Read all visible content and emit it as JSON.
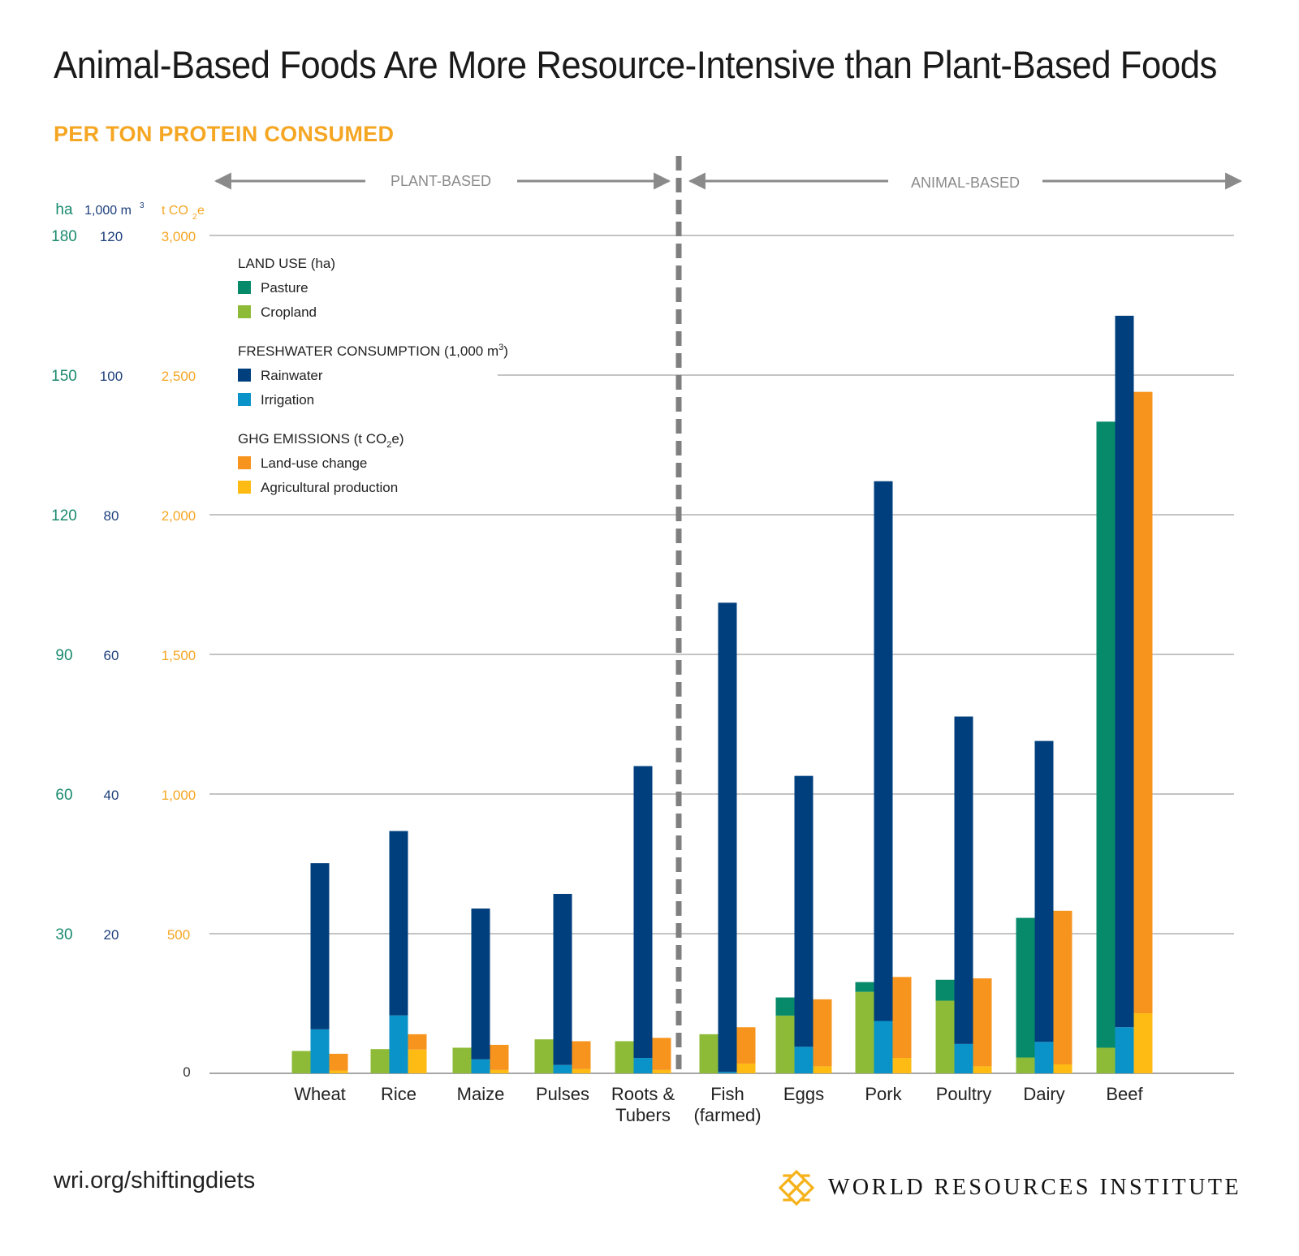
{
  "title": "Animal-Based Foods Are More Resource-Intensive than Plant-Based Foods",
  "subtitle": "PER TON PROTEIN CONSUMED",
  "footer": {
    "url": "wri.org/shiftingdiets",
    "logo_text": "WORLD RESOURCES INSTITUTE"
  },
  "colors": {
    "pasture": "#078a6a",
    "cropland": "#8dbb38",
    "rainwater": "#003f7d",
    "irrigation": "#0a93c9",
    "land_use_change": "#f7941d",
    "agricultural_production": "#fdbb14",
    "axis_ha": "#1a8a6e",
    "axis_water": "#1d3f7c",
    "axis_co2": "#f5a623",
    "gridline": "#8a8a8a",
    "divider": "#7f7f7f",
    "logo": "#f5b21b"
  },
  "chart_data": {
    "type": "bar",
    "categories": [
      "Wheat",
      "Rice",
      "Maize",
      "Pulses",
      "Roots & Tubers",
      "Fish (farmed)",
      "Eggs",
      "Pork",
      "Poultry",
      "Dairy",
      "Beef"
    ],
    "groups": {
      "plant_based": {
        "label": "PLANT-BASED",
        "categories": [
          "Wheat",
          "Rice",
          "Maize",
          "Pulses",
          "Roots & Tubers"
        ]
      },
      "animal_based": {
        "label": "ANIMAL-BASED",
        "categories": [
          "Fish (farmed)",
          "Eggs",
          "Pork",
          "Poultry",
          "Dairy",
          "Beef"
        ]
      }
    },
    "axes": [
      {
        "unit": "ha",
        "ticks": [
          "0",
          "30",
          "60",
          "90",
          "120",
          "150",
          "180"
        ],
        "ylim": [
          0,
          180
        ]
      },
      {
        "unit": "1,000 m",
        "unit_sup": "3",
        "ticks": [
          "20",
          "40",
          "60",
          "80",
          "100",
          "120"
        ],
        "ylim": [
          0,
          120
        ]
      },
      {
        "unit_prefix": "t CO",
        "unit_sub": "2",
        "unit_suffix": "e",
        "ticks": [
          "500",
          "1,000",
          "1,500",
          "2,000",
          "2,500",
          "3,000"
        ],
        "ylim": [
          0,
          3000
        ]
      }
    ],
    "zero_label": "0",
    "grid": true,
    "legend": {
      "placement": "top-left",
      "groups": [
        {
          "title": "LAND USE (ha)",
          "items": [
            {
              "label": "Pasture",
              "color_key": "pasture"
            },
            {
              "label": "Cropland",
              "color_key": "cropland"
            }
          ]
        },
        {
          "title": "FRESHWATER CONSUMPTION (1,000 m",
          "title_sup": "3",
          "title_end": ")",
          "items": [
            {
              "label": "Rainwater",
              "color_key": "rainwater"
            },
            {
              "label": "Irrigation",
              "color_key": "irrigation"
            }
          ]
        },
        {
          "title": "GHG EMISSIONS (t CO",
          "title_sub": "2",
          "title_end": "e)",
          "items": [
            {
              "label": "Land-use change",
              "color_key": "land_use_change"
            },
            {
              "label": "Agricultural production",
              "color_key": "agricultural_production"
            }
          ]
        }
      ]
    },
    "land_use_ha": {
      "series": [
        {
          "name": "Cropland",
          "values": [
            4.8,
            5.2,
            5.5,
            7.3,
            6.9,
            8.4,
            12.4,
            17.5,
            15.6,
            3.4,
            5.5
          ]
        },
        {
          "name": "Pasture",
          "values": [
            0,
            0,
            0,
            0,
            0,
            0,
            3.9,
            2.1,
            4.5,
            30.0,
            134.5
          ]
        }
      ]
    },
    "freshwater_1000m3": {
      "series": [
        {
          "name": "Irrigation",
          "values": [
            6.3,
            8.3,
            2.0,
            1.2,
            2.2,
            0.2,
            3.8,
            7.5,
            4.2,
            4.5,
            6.6
          ]
        },
        {
          "name": "Rainwater",
          "values": [
            23.8,
            26.4,
            21.6,
            24.5,
            41.8,
            67.2,
            38.8,
            77.3,
            46.9,
            43.1,
            101.9
          ]
        }
      ]
    },
    "ghg_tco2e": {
      "series": [
        {
          "name": "Agricultural production",
          "values": [
            10,
            85,
            12,
            15,
            12,
            35,
            25,
            55,
            25,
            32,
            215
          ]
        },
        {
          "name": "Land-use change",
          "values": [
            60,
            55,
            90,
            100,
            115,
            130,
            240,
            290,
            315,
            550,
            2225
          ]
        }
      ]
    }
  }
}
